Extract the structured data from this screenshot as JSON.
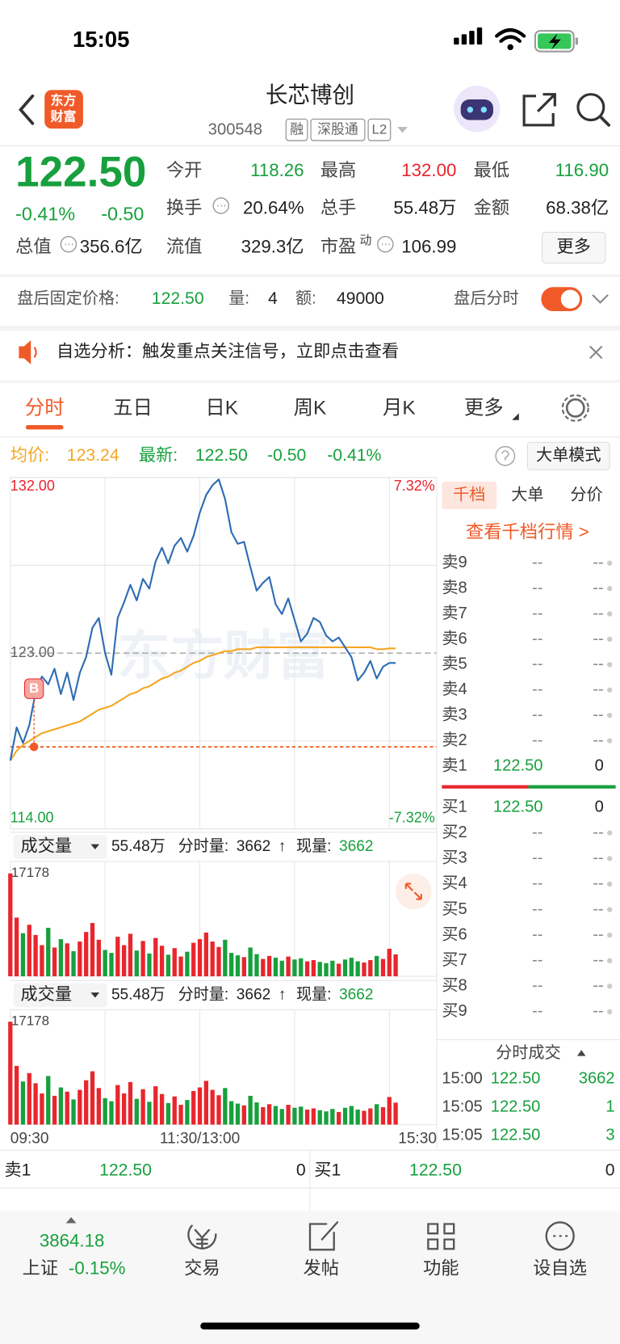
{
  "status_bar": {
    "time": "15:05"
  },
  "header": {
    "logo": [
      "东方",
      "财富"
    ],
    "title": "长芯博创",
    "code": "300548",
    "tags": [
      "融",
      "深股通",
      "L2"
    ]
  },
  "quote": {
    "price": "122.50",
    "change_percent": "-0.41%",
    "change": "-0.50",
    "stats": [
      {
        "label": "今开",
        "value": "118.26",
        "color": "#17a03d"
      },
      {
        "label": "最高",
        "value": "132.00",
        "color": "#e8262d"
      },
      {
        "label": "最低",
        "value": "116.90",
        "color": "#17a03d"
      },
      {
        "label": "换手",
        "value": "20.64%",
        "color": "#222222"
      },
      {
        "label": "总手",
        "value": "55.48万",
        "color": "#222222"
      },
      {
        "label": "金额",
        "value": "68.38亿",
        "color": "#222222"
      },
      {
        "label": "总值",
        "value": "356.6亿",
        "color": "#222222"
      },
      {
        "label": "流值",
        "value": "329.3亿",
        "color": "#222222"
      },
      {
        "label": "市盈",
        "sup": "动",
        "value": "106.99",
        "color": "#222222"
      }
    ],
    "more_button": "更多"
  },
  "after_hours": {
    "label": "盘后固定价格:",
    "price": "122.50",
    "volume_label": "量:",
    "volume": "4",
    "amount_label": "额:",
    "amount": "49000",
    "toggle_label": "盘后分时",
    "toggle_on": true
  },
  "notice": {
    "text": "自选分析：触发重点关注信号，立即点击查看"
  },
  "tabs": {
    "items": [
      "分时",
      "五日",
      "日K",
      "周K",
      "月K",
      "更多"
    ],
    "active": 0
  },
  "chart_data": {
    "type": "line",
    "legend": {
      "avg_value": "123.24",
      "latest_value": "122.50",
      "change": "-0.50",
      "change_percent": "-0.41%",
      "mode_button": "大单模式"
    },
    "watermark": "东方财富",
    "x": [
      0,
      4,
      8,
      12,
      16,
      20,
      24,
      28,
      32,
      36,
      40,
      44,
      48,
      52,
      56,
      60,
      64,
      68,
      72,
      76,
      80,
      84,
      88,
      92,
      96,
      100,
      104,
      108,
      112,
      116,
      120,
      124,
      128,
      132,
      136,
      140,
      144,
      148,
      152,
      156,
      160,
      164,
      168,
      172,
      176,
      180,
      184,
      188,
      192,
      196,
      200,
      204,
      208,
      212,
      216,
      220,
      224,
      228,
      232,
      236,
      240,
      244
    ],
    "xlim": [
      0,
      270
    ],
    "xticks": [
      {
        "value": 0,
        "label": "09:30"
      },
      {
        "value": 120,
        "label": "11:30/13:00"
      },
      {
        "value": 270,
        "label": "15:30"
      }
    ],
    "xgrid": [
      60,
      120,
      180,
      240
    ],
    "ylim": [
      114,
      132
    ],
    "yticks": [
      {
        "value": 132,
        "label": "132.00"
      },
      {
        "value": 123,
        "label": "123.00"
      },
      {
        "value": 114,
        "label": "114.00"
      }
    ],
    "ygrid": [
      127.5,
      118.5
    ],
    "y2lim": [
      -7.32,
      7.32
    ],
    "y2ticks": [
      {
        "value": 7.32,
        "label": "7.32%"
      },
      {
        "value": -7.32,
        "label": "-7.32%"
      }
    ],
    "series": [
      {
        "name": "最新:",
        "color": "#2d6cb5",
        "values": [
          117.5,
          119.2,
          118.4,
          119.3,
          121.0,
          121.8,
          121.4,
          122.2,
          120.9,
          122.0,
          120.6,
          122.0,
          122.8,
          124.3,
          124.8,
          123.0,
          121.9,
          124.8,
          125.6,
          126.5,
          125.7,
          126.8,
          126.3,
          127.7,
          128.4,
          127.6,
          128.5,
          128.9,
          128.2,
          129.0,
          130.2,
          131.1,
          131.6,
          131.9,
          130.9,
          129.2,
          128.6,
          128.7,
          127.4,
          126.2,
          126.6,
          126.9,
          125.5,
          125.0,
          125.8,
          124.7,
          123.6,
          124.0,
          124.8,
          124.6,
          123.9,
          123.6,
          123.8,
          123.3,
          122.8,
          121.6,
          122.0,
          122.6,
          121.7,
          122.3,
          122.5,
          122.5
        ]
      },
      {
        "name": "均价:",
        "color": "#f5a623",
        "values": [
          117.5,
          118.0,
          118.3,
          118.5,
          118.7,
          118.9,
          119.0,
          119.1,
          119.2,
          119.3,
          119.4,
          119.5,
          119.7,
          119.9,
          120.1,
          120.2,
          120.3,
          120.5,
          120.7,
          120.9,
          121.0,
          121.2,
          121.3,
          121.5,
          121.7,
          121.8,
          122.0,
          122.1,
          122.3,
          122.5,
          122.6,
          122.8,
          122.9,
          123.0,
          123.1,
          123.1,
          123.2,
          123.2,
          123.2,
          123.3,
          123.3,
          123.3,
          123.3,
          123.3,
          123.3,
          123.3,
          123.3,
          123.3,
          123.3,
          123.3,
          123.3,
          123.3,
          123.3,
          123.3,
          123.3,
          123.3,
          123.3,
          123.3,
          123.2,
          123.2,
          123.24,
          123.24
        ]
      }
    ],
    "ref_line": {
      "value": 118.2,
      "color": "#f26b2b"
    },
    "buy_marker": {
      "label": "B",
      "x": 15,
      "value": 118.2
    },
    "volume": {
      "label": "成交量",
      "total": "55.48万",
      "period_label": "分时量:",
      "period": "3662",
      "arrow": "↑",
      "current_label": "现量:",
      "current": "3662",
      "ylim": [
        0,
        17178
      ],
      "yticks": [
        17178
      ],
      "up_color": "#e8262d",
      "down_color": "#17a03d",
      "values": [
        17178,
        9800,
        7200,
        8600,
        6900,
        5200,
        8100,
        4800,
        6200,
        5500,
        4200,
        5800,
        7400,
        8900,
        6100,
        4400,
        3900,
        6600,
        5200,
        7100,
        4300,
        5900,
        3800,
        6400,
        5100,
        3600,
        4700,
        3300,
        4100,
        5600,
        6200,
        7300,
        5800,
        4900,
        6100,
        3900,
        3500,
        3200,
        4800,
        3700,
        2900,
        3400,
        3100,
        2600,
        3300,
        2800,
        3000,
        2500,
        2700,
        2400,
        2200,
        2600,
        2100,
        2800,
        3100,
        2500,
        2300,
        2700,
        3400,
        2900,
        4600,
        3662
      ]
    }
  },
  "orderbook": {
    "tabs": [
      "千档",
      "大单",
      "分价"
    ],
    "link": "查看千档行情 >",
    "asks": [
      {
        "label": "卖9",
        "price": "--",
        "volume": "--"
      },
      {
        "label": "卖8",
        "price": "--",
        "volume": "--"
      },
      {
        "label": "卖7",
        "price": "--",
        "volume": "--"
      },
      {
        "label": "卖6",
        "price": "--",
        "volume": "--"
      },
      {
        "label": "卖5",
        "price": "--",
        "volume": "--"
      },
      {
        "label": "卖4",
        "price": "--",
        "volume": "--"
      },
      {
        "label": "卖3",
        "price": "--",
        "volume": "--"
      },
      {
        "label": "卖2",
        "price": "--",
        "volume": "--"
      },
      {
        "label": "卖1",
        "price": "122.50",
        "volume": "0"
      }
    ],
    "bids": [
      {
        "label": "买1",
        "price": "122.50",
        "volume": "0"
      },
      {
        "label": "买2",
        "price": "--",
        "volume": "--"
      },
      {
        "label": "买3",
        "price": "--",
        "volume": "--"
      },
      {
        "label": "买4",
        "price": "--",
        "volume": "--"
      },
      {
        "label": "买5",
        "price": "--",
        "volume": "--"
      },
      {
        "label": "买6",
        "price": "--",
        "volume": "--"
      },
      {
        "label": "买7",
        "price": "--",
        "volume": "--"
      },
      {
        "label": "买8",
        "price": "--",
        "volume": "--"
      },
      {
        "label": "买9",
        "price": "--",
        "volume": "--"
      }
    ],
    "trades_title": "分时成交",
    "trades": [
      {
        "time": "15:00",
        "price": "122.50",
        "volume": "3662"
      },
      {
        "time": "15:05",
        "price": "122.50",
        "volume": "1"
      },
      {
        "time": "15:05",
        "price": "122.50",
        "volume": "3"
      }
    ]
  },
  "bottom_quote": {
    "ask": {
      "label": "卖1",
      "price": "122.50",
      "volume": "0"
    },
    "bid": {
      "label": "买1",
      "price": "122.50",
      "volume": "0"
    }
  },
  "nav": {
    "index": {
      "value": "3864.18",
      "name": "上证",
      "change": "-0.15%"
    },
    "items": [
      "交易",
      "发帖",
      "功能",
      "设自选"
    ]
  }
}
